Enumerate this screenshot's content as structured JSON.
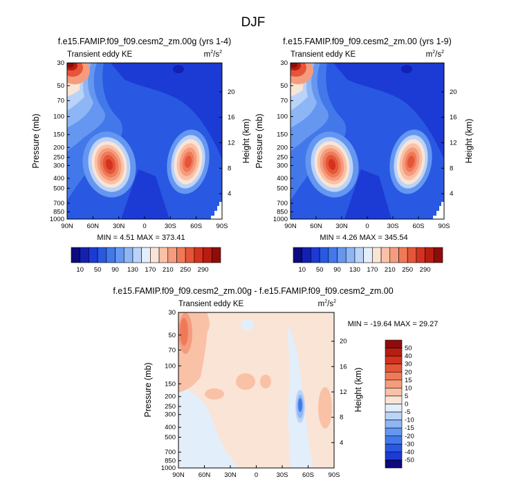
{
  "page_title": "DJF",
  "chart_data": [
    {
      "type": "heatmap",
      "title": "f.e15.FAMIP.f09_f09.cesm2_zm.00g (yrs 1-4)",
      "subtitle_left": "Transient eddy KE",
      "units_base": "m",
      "units_sup1": "2",
      "units_mid": "/s",
      "units_sup2": "2",
      "ylabel": "Pressure (mb)",
      "ylabel_right": "Height (km)",
      "x_ticks": [
        "90N",
        "60N",
        "30N",
        "0",
        "30S",
        "60S",
        "90S"
      ],
      "y_ticks": [
        "30",
        "50",
        "70",
        "100",
        "150",
        "200",
        "250",
        "300",
        "400",
        "500",
        "700",
        "850",
        "1000"
      ],
      "y_right_ticks": [
        "20",
        "16",
        "12",
        "8",
        "4"
      ],
      "min_max_text": "MIN =   4.51   MAX = 373.41"
    },
    {
      "type": "heatmap",
      "title": "f.e15.FAMIP.f09_f09.cesm2_zm.00 (yrs 1-9)",
      "subtitle_left": "Transient eddy KE",
      "units_base": "m",
      "units_sup1": "2",
      "units_mid": "/s",
      "units_sup2": "2",
      "ylabel": "Pressure (mb)",
      "ylabel_right": "Height (km)",
      "x_ticks": [
        "90N",
        "60N",
        "30N",
        "0",
        "30S",
        "60S",
        "90S"
      ],
      "y_ticks": [
        "30",
        "50",
        "70",
        "100",
        "150",
        "200",
        "250",
        "300",
        "400",
        "500",
        "700",
        "850",
        "1000"
      ],
      "y_right_ticks": [
        "20",
        "16",
        "12",
        "8",
        "4"
      ],
      "min_max_text": "MIN =   4.26   MAX = 345.54"
    },
    {
      "type": "heatmap",
      "title": "f.e15.FAMIP.f09_f09.cesm2_zm.00g - f.e15.FAMIP.f09_f09.cesm2_zm.00",
      "subtitle_left": "Transient eddy KE",
      "units_base": "m",
      "units_sup1": "2",
      "units_mid": "/s",
      "units_sup2": "2",
      "ylabel": "Pressure (mb)",
      "ylabel_right": "Height (km)",
      "x_ticks": [
        "90N",
        "60N",
        "30N",
        "0",
        "30S",
        "60S",
        "90S"
      ],
      "y_ticks": [
        "30",
        "50",
        "70",
        "100",
        "150",
        "200",
        "250",
        "300",
        "400",
        "500",
        "700",
        "850",
        "1000"
      ],
      "y_right_ticks": [
        "20",
        "16",
        "12",
        "8",
        "4"
      ],
      "min_max_text": "MIN = -19.64   MAX =  29.27"
    }
  ],
  "colorbar_abs": {
    "labels": [
      "10",
      "50",
      "90",
      "130",
      "170",
      "210",
      "250",
      "290"
    ],
    "colors": [
      "#0c0a7c",
      "#1220b4",
      "#1c3ad4",
      "#2958e2",
      "#4378ea",
      "#6596f0",
      "#8eb6f5",
      "#bad3f9",
      "#e3eefb",
      "#fae4d6",
      "#f9c1a6",
      "#f59c7e",
      "#ef7a58",
      "#e65538",
      "#d4321f",
      "#b81d12",
      "#8e0d0b"
    ]
  },
  "colorbar_diff": {
    "labels": [
      "50",
      "40",
      "30",
      "20",
      "15",
      "10",
      "5",
      "0",
      "-5",
      "-10",
      "-15",
      "-20",
      "-30",
      "-40",
      "-50"
    ],
    "colors": [
      "#8e0d0b",
      "#b81d12",
      "#d4321f",
      "#e65538",
      "#ef7a58",
      "#f59c7e",
      "#f9c1a6",
      "#fae4d6",
      "#e3eefb",
      "#bad3f9",
      "#8eb6f5",
      "#6596f0",
      "#4378ea",
      "#2958e2",
      "#1c3ad4",
      "#0c0a7c"
    ]
  }
}
